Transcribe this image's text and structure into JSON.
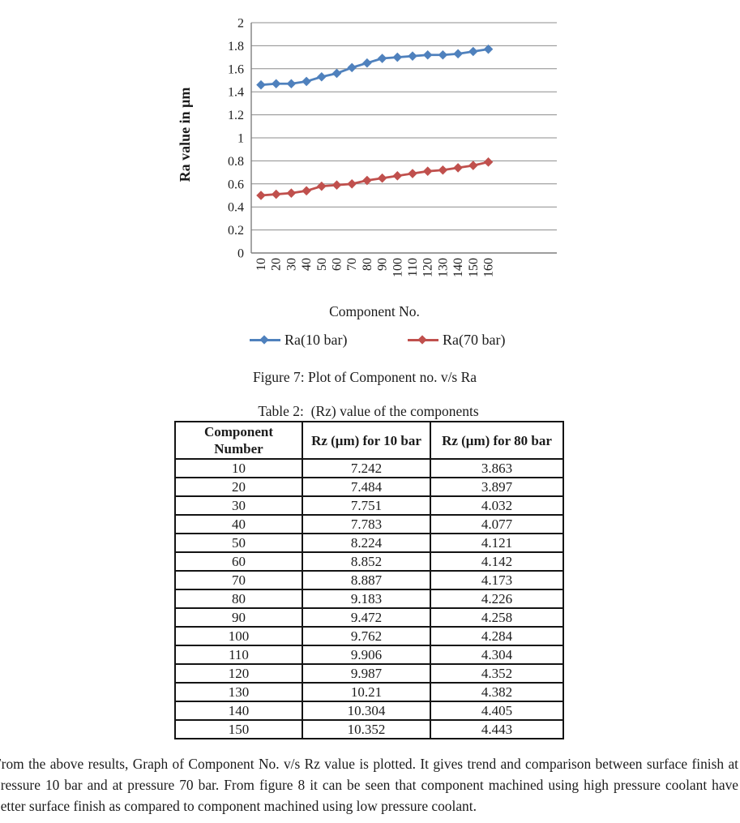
{
  "chart_data": {
    "type": "line",
    "title": "",
    "xlabel": "Component No.",
    "ylabel": "Ra value in μm",
    "x": [
      10,
      20,
      30,
      40,
      50,
      60,
      70,
      80,
      90,
      100,
      110,
      120,
      130,
      140,
      150,
      160
    ],
    "series": [
      {
        "name": "Ra(10 bar)",
        "color": "#4F81BD",
        "values": [
          1.46,
          1.47,
          1.47,
          1.49,
          1.53,
          1.56,
          1.61,
          1.65,
          1.69,
          1.7,
          1.71,
          1.72,
          1.72,
          1.73,
          1.75,
          1.77
        ]
      },
      {
        "name": "Ra(70 bar)",
        "color": "#C0504D",
        "values": [
          0.5,
          0.51,
          0.52,
          0.54,
          0.58,
          0.59,
          0.6,
          0.63,
          0.65,
          0.67,
          0.69,
          0.71,
          0.72,
          0.74,
          0.76,
          0.79
        ]
      }
    ],
    "ylim": [
      0,
      2
    ],
    "ytick_step": 0.2,
    "grid": true,
    "legend_position": "bottom",
    "axis_color": "#7f7f7f",
    "grid_color": "#8c8c8c",
    "marker": "diamond"
  },
  "figure": {
    "caption": "Figure 7: Plot of Component no. v/s Ra"
  },
  "table": {
    "title": "Table 2:  (Rz) value of the components",
    "headers": [
      "Component Number",
      "Rz (μm) for 10 bar",
      "Rz (μm) for 80 bar"
    ],
    "rows": [
      [
        "10",
        "7.242",
        "3.863"
      ],
      [
        "20",
        "7.484",
        "3.897"
      ],
      [
        "30",
        "7.751",
        "4.032"
      ],
      [
        "40",
        "7.783",
        "4.077"
      ],
      [
        "50",
        "8.224",
        "4.121"
      ],
      [
        "60",
        "8.852",
        "4.142"
      ],
      [
        "70",
        "8.887",
        "4.173"
      ],
      [
        "80",
        "9.183",
        "4.226"
      ],
      [
        "90",
        "9.472",
        "4.258"
      ],
      [
        "100",
        "9.762",
        "4.284"
      ],
      [
        "110",
        "9.906",
        "4.304"
      ],
      [
        "120",
        "9.987",
        "4.352"
      ],
      [
        "130",
        "10.21",
        "4.382"
      ],
      [
        "140",
        "10.304",
        "4.405"
      ],
      [
        "150",
        "10.352",
        "4.443"
      ]
    ]
  },
  "paragraph": "From the above results, Graph of Component No. v/s Rz value is plotted. It gives trend and comparison between surface finish at pressure 10 bar and at pressure 70 bar. From figure 8 it can be seen that component machined using high pressure coolant have better surface finish as compared to component machined using low pressure coolant."
}
